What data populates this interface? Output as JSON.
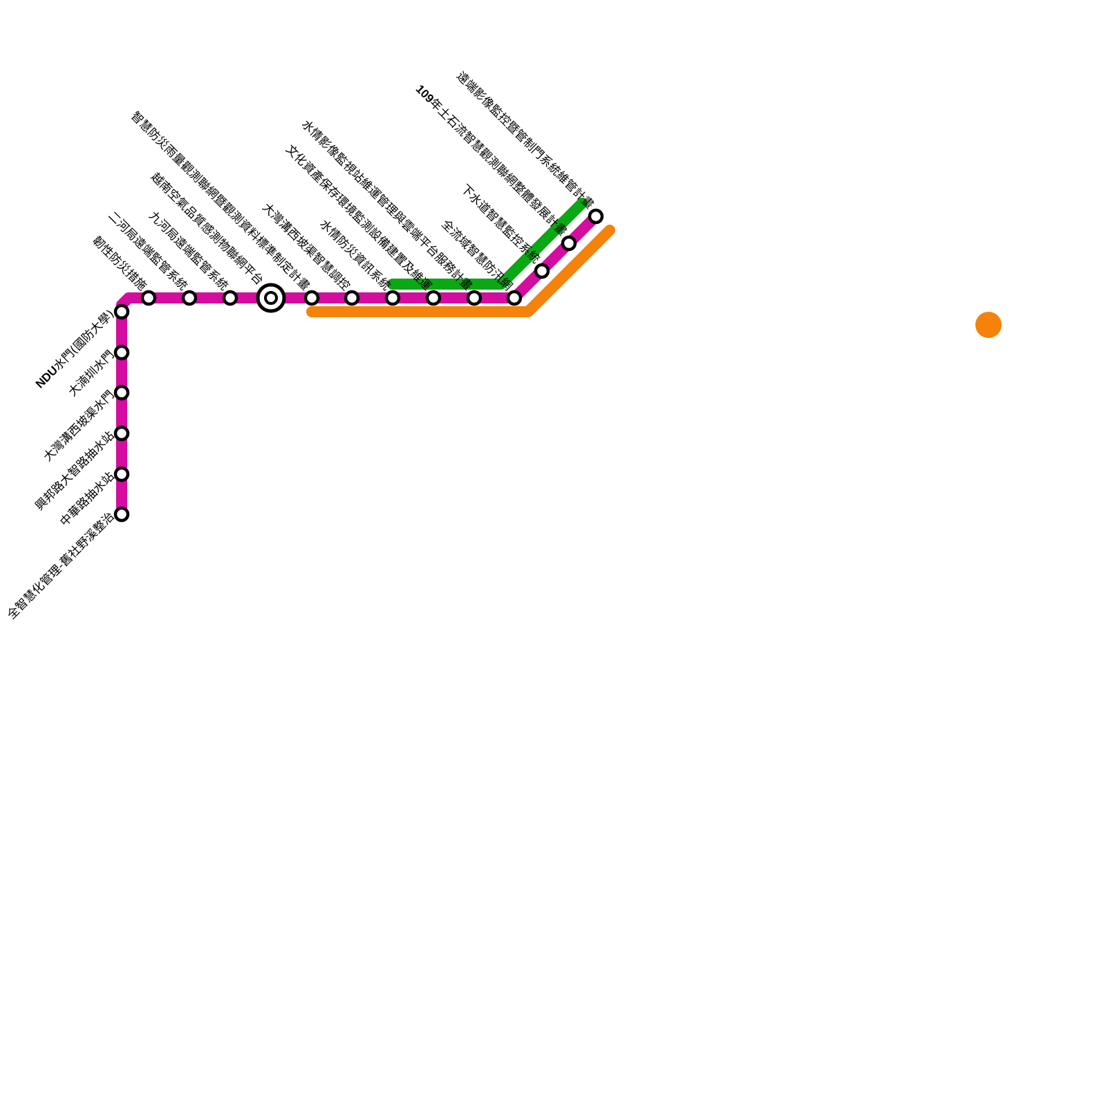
{
  "colors": {
    "magenta": "#d40ca0",
    "green": "#0aa814",
    "orange": "#f5820a",
    "station_stroke": "#000000",
    "station_fill": "#ffffff"
  },
  "lines": [
    {
      "id": "magenta-line",
      "color": "#d40ca0"
    },
    {
      "id": "green-line",
      "color": "#0aa814"
    },
    {
      "id": "orange-line",
      "color": "#f5820a"
    }
  ],
  "horizontal_stations": [
    {
      "label": "韌性防災措施"
    },
    {
      "label": "二河局遠端監管系統"
    },
    {
      "label": "九河局遠端監管系統"
    },
    {
      "label": "越南空氣品質感測物聯網平台",
      "interchange": true
    },
    {
      "label": "智慧防災雨量觀測聯網暨觀測資料標準制定計畫"
    },
    {
      "label": "大灣溝西坡渠智慧調控"
    },
    {
      "label": "水情防災資訊系統"
    },
    {
      "label": "文化資產保存環境監測設備建置及維運"
    },
    {
      "label": "水情影像監視站維運管理與雲端平台服務計畫"
    },
    {
      "label": "全流域智慧防汛網"
    },
    {
      "label": "下水道智慧監控系統"
    },
    {
      "bold": "109",
      "label": "年土石流智慧觀測聯網整體發展計畫"
    },
    {
      "label": "遠端影像監控暨管制門系統維管計畫"
    }
  ],
  "vertical_stations": [
    {
      "bold": "NDU",
      "label": "水門(國防大學)"
    },
    {
      "label": "大湳圳水門"
    },
    {
      "label": "大灣溝西坡渠水門"
    },
    {
      "label": "興邦路大智路抽水站"
    },
    {
      "label": "中華路抽水站"
    },
    {
      "label": "全智慧化管理-舊社野溪整治"
    }
  ]
}
